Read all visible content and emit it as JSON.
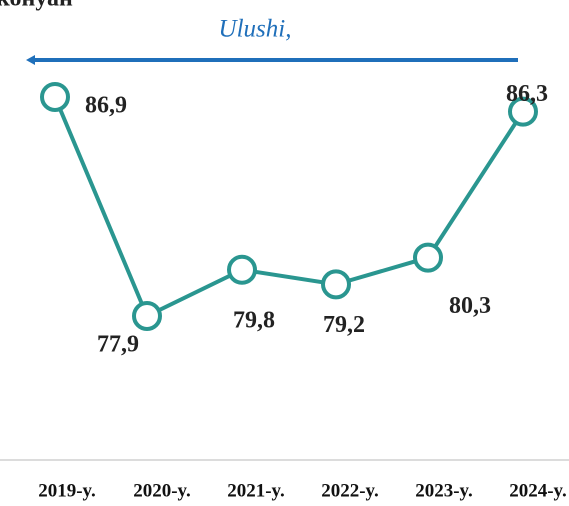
{
  "chart_data": {
    "type": "line",
    "title": "конуан",
    "annotation": "Ulushi,",
    "categories": [
      "2019-y.",
      "2020-y.",
      "2021-y.",
      "2022-y.",
      "2023-y.",
      "2024-y."
    ],
    "series": [
      {
        "name": null,
        "color": "#2a9690",
        "values": [
          86.9,
          77.9,
          79.8,
          79.2,
          80.3,
          86.3
        ],
        "value_labels": [
          "86,9",
          "77,9",
          "79,8",
          "79,2",
          "80,3",
          "86,3"
        ]
      }
    ],
    "annotation_color": "#1f6fba"
  }
}
